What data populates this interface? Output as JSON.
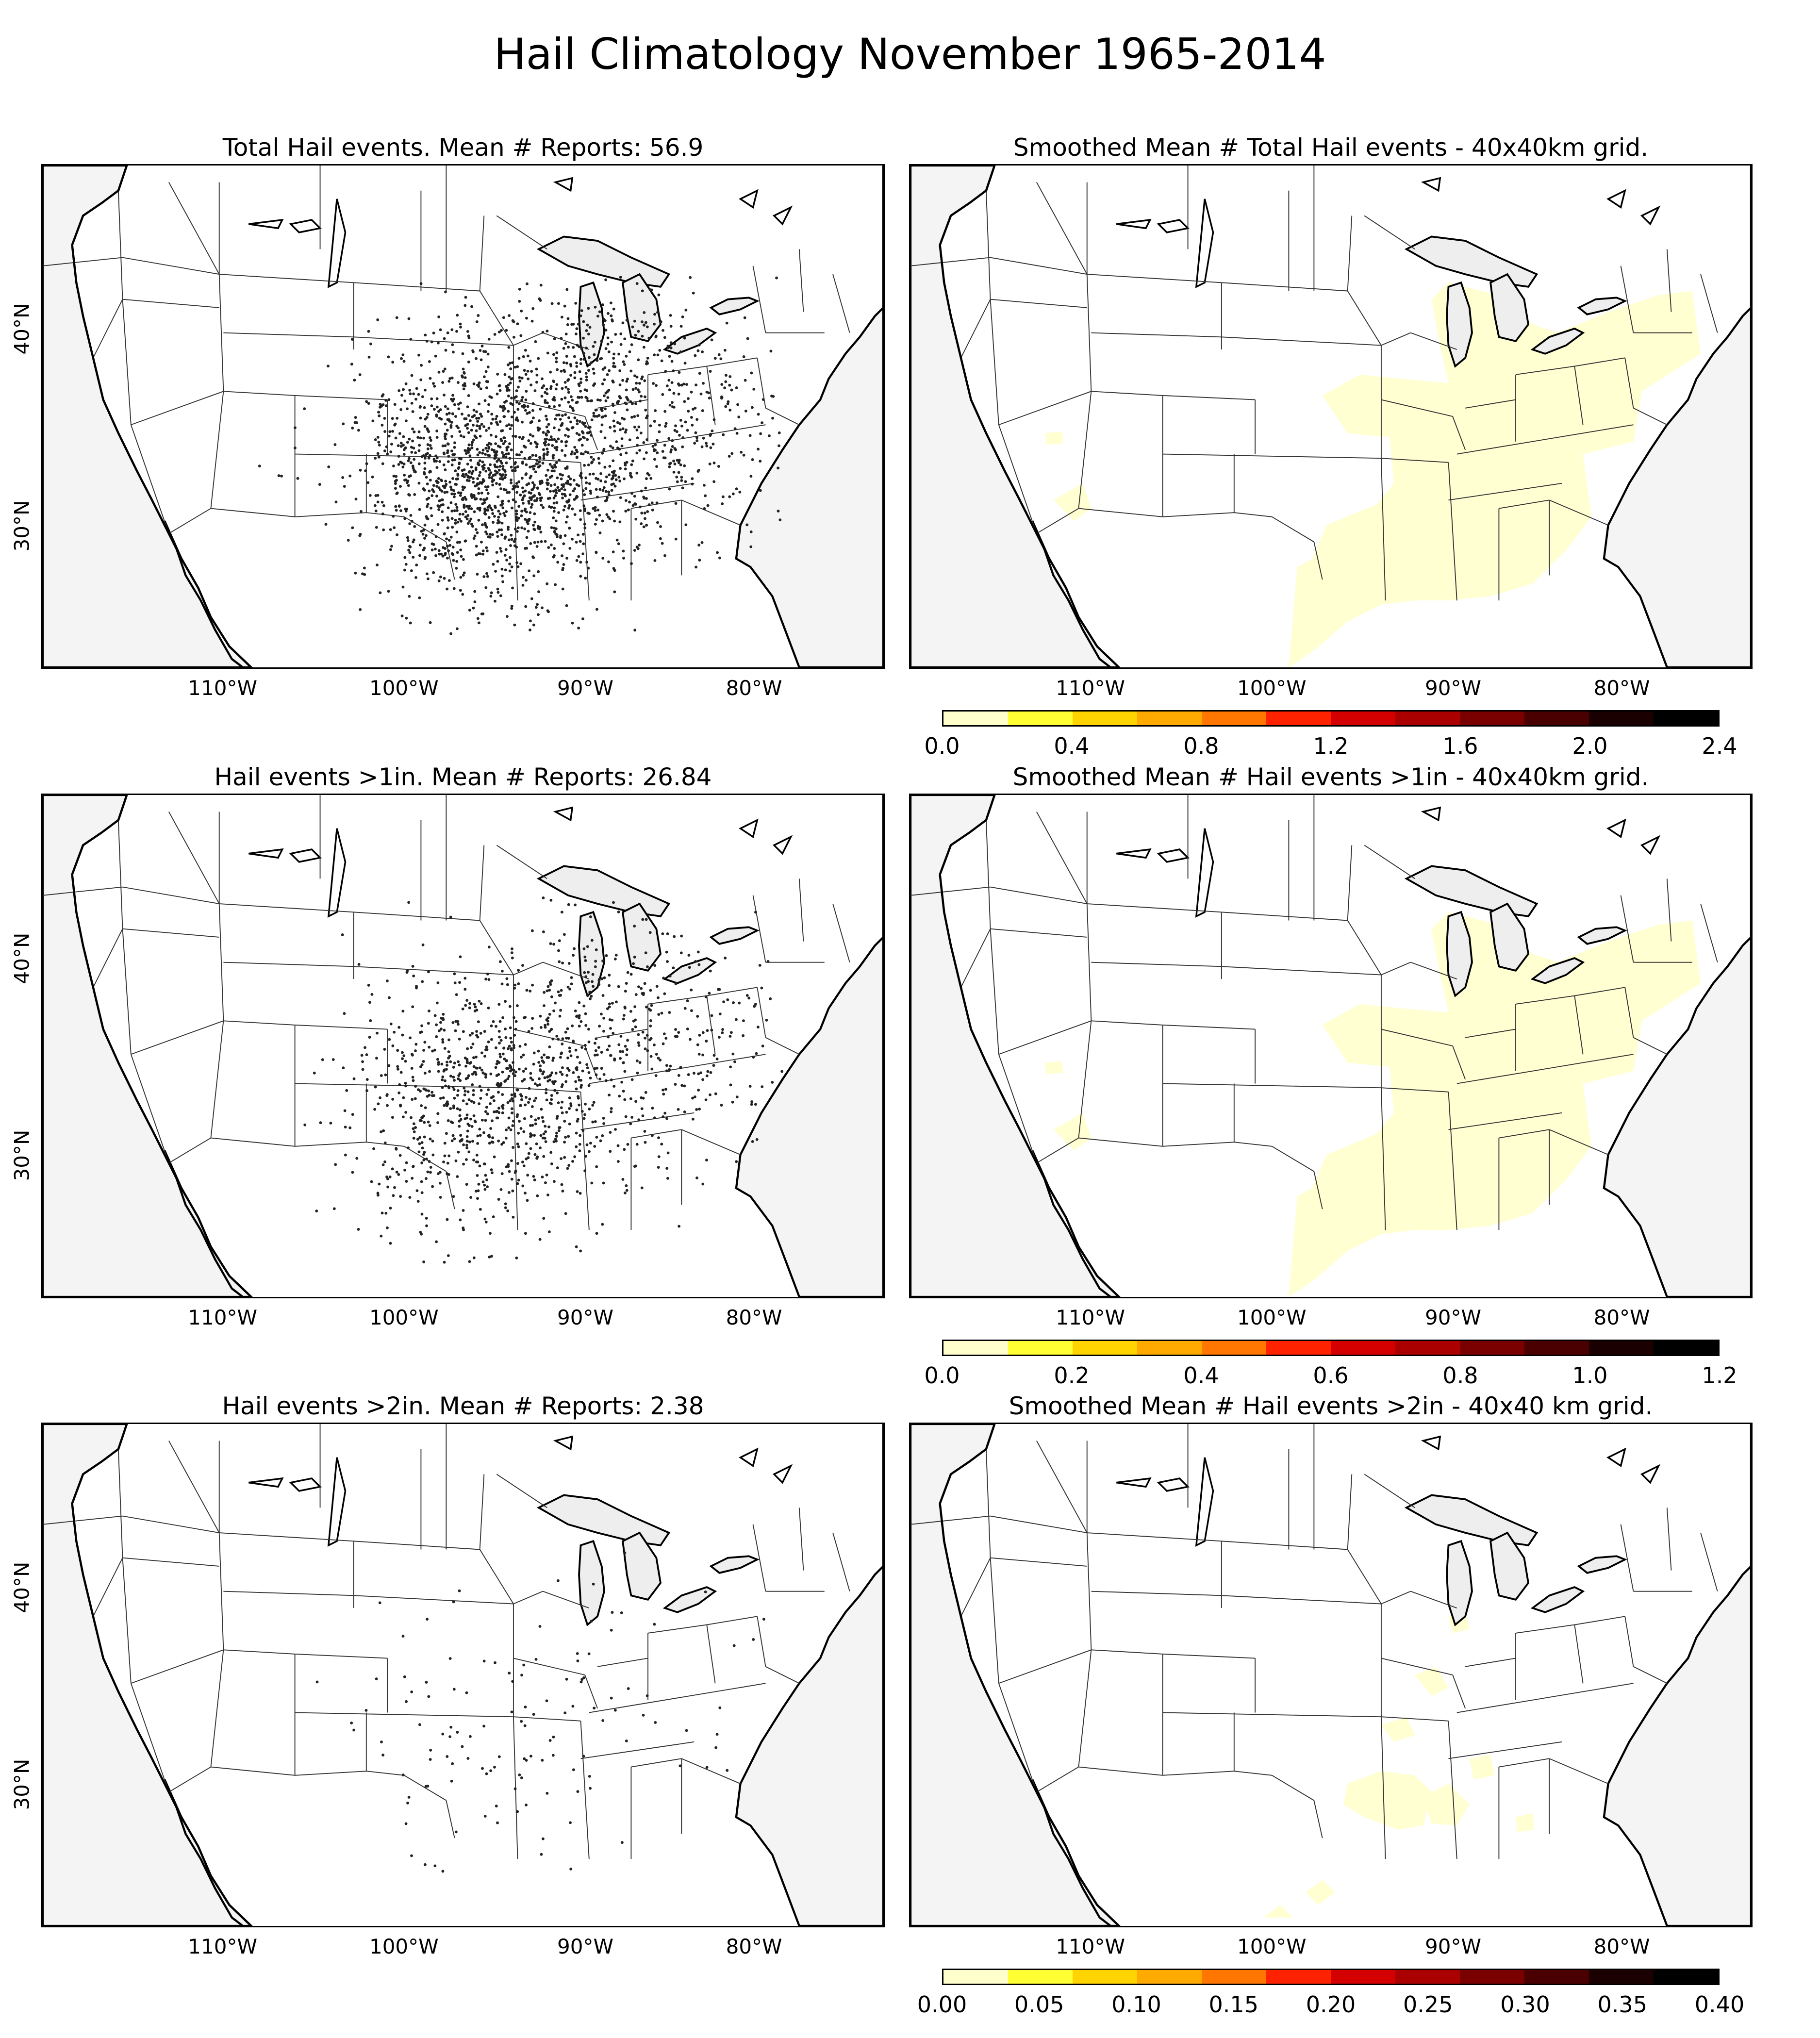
{
  "figure_title": "Hail Climatology November 1965-2014",
  "panels": [
    {
      "id": "p1",
      "title": "Total Hail events. Mean # Reports: 56.9",
      "kind": "scatter",
      "density": 2200,
      "lat_labels": true
    },
    {
      "id": "p2",
      "title": "Smoothed Mean # Total Hail events - 40x40km grid.",
      "kind": "smoothed",
      "extent": "wide",
      "colorbar": {
        "ticks": [
          "0.0",
          "0.4",
          "0.8",
          "1.2",
          "1.6",
          "2.0",
          "2.4"
        ]
      }
    },
    {
      "id": "p3",
      "title": "Hail events >1in. Mean # Reports: 26.84",
      "kind": "scatter",
      "density": 1300,
      "lat_labels": true
    },
    {
      "id": "p4",
      "title": "Smoothed Mean # Hail events >1in - 40x40km grid.",
      "kind": "smoothed",
      "extent": "wide",
      "colorbar": {
        "ticks": [
          "0.0",
          "0.2",
          "0.4",
          "0.6",
          "0.8",
          "1.0",
          "1.2"
        ]
      }
    },
    {
      "id": "p5",
      "title": "Hail events >2in. Mean # Reports: 2.38",
      "kind": "scatter",
      "density": 130,
      "lat_labels": true
    },
    {
      "id": "p6",
      "title": "Smoothed Mean # Hail events >2in - 40x40 km grid.",
      "kind": "smoothed",
      "extent": "sparse",
      "colorbar": {
        "ticks": [
          "0.00",
          "0.05",
          "0.10",
          "0.15",
          "0.20",
          "0.25",
          "0.30",
          "0.35",
          "0.40"
        ]
      }
    }
  ],
  "lon_labels": [
    "110°W",
    "100°W",
    "90°W",
    "80°W"
  ],
  "lat_labels": [
    "40°N",
    "30°N"
  ],
  "colors": {
    "land": "#ffffff",
    "water": "#f4f4f4",
    "lakes": "#eeeeee",
    "smoothed_fill": "#ffffd2",
    "colormap": [
      "#ffffcc",
      "#ffff33",
      "#ffd400",
      "#ffaa00",
      "#ff7700",
      "#ff2200",
      "#d40000",
      "#aa0000",
      "#7a0000",
      "#4a0000",
      "#1a0000",
      "#000000"
    ]
  }
}
